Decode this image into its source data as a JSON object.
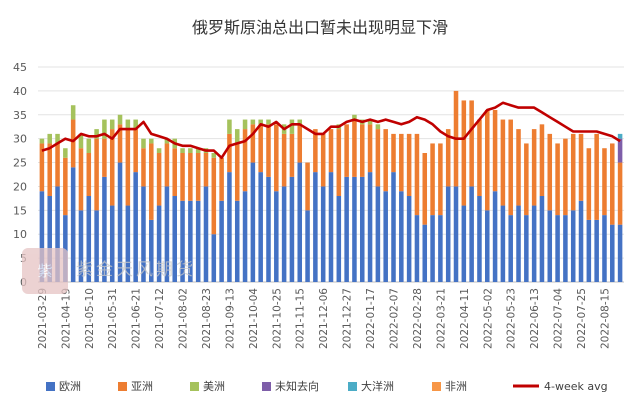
{
  "chart_data": {
    "type": "bar",
    "stacked": true,
    "title": "俄罗斯原油总出口暂未出现明显下滑",
    "xlabel": "",
    "ylabel": "",
    "ylim": [
      0,
      45
    ],
    "yticks": [
      0,
      5,
      10,
      15,
      20,
      25,
      30,
      35,
      40,
      45
    ],
    "grid": true,
    "legend_position": "bottom",
    "x_tick_labels": [
      "2021-03-29",
      "2021-04-19",
      "2021-05-10",
      "2021-05-31",
      "2021-06-21",
      "2021-07-12",
      "2021-08-02",
      "2021-08-23",
      "2021-09-13",
      "2021-10-04",
      "2021-10-25",
      "2021-11-15",
      "2021-12-06",
      "2021-12-27",
      "2022-01-17",
      "2022-02-07",
      "2022-02-28",
      "2022-03-21",
      "2022-04-11",
      "2022-05-02",
      "2022-05-23",
      "2022-06-13",
      "2022-07-04",
      "2022-07-25",
      "2022-08-15"
    ],
    "categories": [
      "2021-03-29",
      "2021-04-05",
      "2021-04-12",
      "2021-04-19",
      "2021-04-26",
      "2021-05-03",
      "2021-05-10",
      "2021-05-17",
      "2021-05-24",
      "2021-05-31",
      "2021-06-07",
      "2021-06-14",
      "2021-06-21",
      "2021-06-28",
      "2021-07-05",
      "2021-07-12",
      "2021-07-19",
      "2021-07-26",
      "2021-08-02",
      "2021-08-09",
      "2021-08-16",
      "2021-08-23",
      "2021-08-30",
      "2021-09-06",
      "2021-09-13",
      "2021-09-20",
      "2021-09-27",
      "2021-10-04",
      "2021-10-11",
      "2021-10-18",
      "2021-10-25",
      "2021-11-01",
      "2021-11-08",
      "2021-11-15",
      "2021-11-22",
      "2021-11-29",
      "2021-12-06",
      "2021-12-13",
      "2021-12-20",
      "2021-12-27",
      "2022-01-03",
      "2022-01-10",
      "2022-01-17",
      "2022-01-24",
      "2022-01-31",
      "2022-02-07",
      "2022-02-14",
      "2022-02-21",
      "2022-02-28",
      "2022-03-07",
      "2022-03-14",
      "2022-03-21",
      "2022-03-28",
      "2022-04-04",
      "2022-04-11",
      "2022-04-18",
      "2022-04-25",
      "2022-05-02",
      "2022-05-09",
      "2022-05-16",
      "2022-05-23",
      "2022-05-30",
      "2022-06-06",
      "2022-06-13",
      "2022-06-20",
      "2022-06-27",
      "2022-07-04",
      "2022-07-11",
      "2022-07-18",
      "2022-07-25",
      "2022-08-01",
      "2022-08-08",
      "2022-08-15",
      "2022-08-22",
      "2022-08-29"
    ],
    "series": [
      {
        "name": "欧洲",
        "color": "#4472c4",
        "values": [
          19,
          18,
          20,
          14,
          24,
          15,
          18,
          15,
          22,
          16,
          25,
          16,
          23,
          20,
          13,
          16,
          20,
          18,
          17,
          17,
          17,
          20,
          10,
          17,
          23,
          17,
          19,
          25,
          23,
          22,
          19,
          20,
          22,
          25,
          15,
          23,
          20,
          23,
          18,
          22,
          22,
          22,
          23,
          20,
          19,
          23,
          19,
          18,
          14,
          12,
          14,
          14,
          20,
          20,
          16,
          20,
          18,
          15,
          19,
          16,
          14,
          16,
          14,
          16,
          18,
          15,
          14,
          14,
          15,
          17,
          13,
          13,
          14,
          12,
          12
        ]
      },
      {
        "name": "亚洲",
        "color": "#ed7d31",
        "values": [
          10,
          11,
          9,
          12,
          10,
          13,
          9,
          15,
          8,
          16,
          8,
          16,
          9,
          8,
          16,
          11,
          9,
          10,
          10,
          10,
          10,
          7,
          16,
          9,
          8,
          12,
          13,
          8,
          10,
          11,
          14,
          11,
          9,
          8,
          10,
          9,
          11,
          9,
          14,
          11,
          12,
          11,
          10,
          12,
          13,
          8,
          12,
          13,
          17,
          15,
          15,
          15,
          12,
          20,
          22,
          18,
          16,
          21,
          17,
          18,
          20,
          16,
          15,
          16,
          15,
          16,
          15,
          16,
          16,
          14,
          15,
          18,
          14,
          17,
          13
        ]
      },
      {
        "name": "美洲",
        "color": "#a5c25c",
        "values": [
          1,
          2,
          2,
          2,
          3,
          3,
          3,
          2,
          4,
          2,
          2,
          2,
          2,
          2,
          1,
          1,
          1,
          2,
          1,
          1,
          1,
          1,
          1,
          0,
          3,
          3,
          2,
          1,
          1,
          1,
          0,
          2,
          3,
          1,
          0,
          0,
          0,
          0,
          1,
          0,
          1,
          1,
          1,
          1,
          0,
          0,
          0,
          0,
          0,
          0,
          0,
          0,
          0,
          0,
          0,
          0,
          0,
          0,
          0,
          0,
          0,
          0,
          0,
          0,
          0,
          0,
          0,
          0,
          0,
          0,
          0,
          0,
          0,
          0,
          0
        ]
      },
      {
        "name": "未知去向",
        "color": "#7e5ea9",
        "values": [
          0,
          0,
          0,
          0,
          0,
          0,
          0,
          0,
          0,
          0,
          0,
          0,
          0,
          0,
          0,
          0,
          0,
          0,
          0,
          0,
          0,
          0,
          0,
          0,
          0,
          0,
          0,
          0,
          0,
          0,
          0,
          0,
          0,
          0,
          0,
          0,
          0,
          0,
          0,
          0,
          0,
          0,
          0,
          0,
          0,
          0,
          0,
          0,
          0,
          0,
          0,
          0,
          0,
          0,
          0,
          0,
          0,
          0,
          0,
          0,
          0,
          0,
          0,
          0,
          0,
          0,
          0,
          0,
          0,
          0,
          0,
          0,
          0,
          0,
          5
        ]
      },
      {
        "name": "大洋洲",
        "color": "#4bacc6",
        "values": [
          0,
          0,
          0,
          0,
          0,
          0,
          0,
          0,
          0,
          0,
          0,
          0,
          0,
          0,
          0,
          0,
          0,
          0,
          0,
          0,
          0,
          0,
          0,
          0,
          0,
          0,
          0,
          0,
          0,
          0,
          0,
          0,
          0,
          0,
          0,
          0,
          0,
          0,
          0,
          0,
          0,
          0,
          0,
          0,
          0,
          0,
          0,
          0,
          0,
          0,
          0,
          0,
          0,
          0,
          0,
          0,
          0,
          0,
          0,
          0,
          0,
          0,
          0,
          0,
          0,
          0,
          0,
          0,
          0,
          0,
          0,
          0,
          0,
          0,
          1
        ]
      },
      {
        "name": "非洲",
        "color": "#f79646",
        "values": [
          0,
          0,
          0,
          0,
          0,
          0,
          0,
          0,
          0,
          0,
          0,
          0,
          0,
          0,
          0,
          0,
          0,
          0,
          0,
          0,
          0,
          0,
          0,
          0,
          0,
          0,
          0,
          0,
          0,
          0,
          0,
          0,
          0,
          0,
          0,
          0,
          0,
          0,
          0,
          0,
          0,
          0,
          0,
          0,
          0,
          0,
          0,
          0,
          0,
          0,
          0,
          0,
          0,
          0,
          0,
          0,
          0,
          0,
          0,
          0,
          0,
          0,
          0,
          0,
          0,
          0,
          0,
          0,
          0,
          0,
          0,
          0,
          0,
          0,
          0
        ]
      }
    ],
    "line": {
      "name": "4-week avg",
      "color": "#c00000",
      "values": [
        27.5,
        28,
        29,
        30,
        29.5,
        31,
        30.5,
        30.5,
        31,
        30,
        32,
        32,
        32,
        33.5,
        31,
        30.5,
        30,
        29,
        28.5,
        28.5,
        28,
        27.5,
        27.5,
        26,
        28.5,
        29,
        29.5,
        31,
        33,
        32.5,
        33.5,
        32,
        33,
        33,
        32,
        31,
        31,
        32.5,
        32.5,
        33.5,
        34,
        33.5,
        34,
        33.5,
        34,
        33.5,
        33,
        33.5,
        34.5,
        34,
        33,
        31.5,
        30.5,
        30,
        30,
        32,
        34,
        36,
        36.5,
        37.5,
        37,
        36.5,
        36.5,
        36.5,
        35.5,
        34.5,
        33.5,
        32.5,
        31.5,
        31.5,
        31.5,
        31.5,
        31,
        30.5,
        29.5
      ]
    }
  },
  "watermark": {
    "text": "紫金天风期货"
  }
}
